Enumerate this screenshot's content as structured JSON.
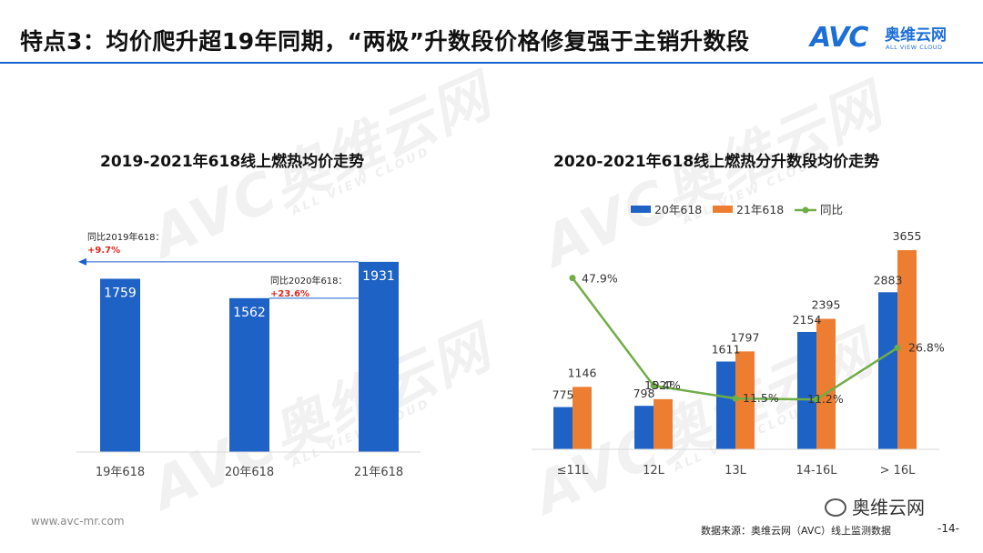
{
  "page": {
    "title": "特点3：均价爬升超19年同期，“两极”升数段价格修复强于主销升数段",
    "logo_mark": "AVC",
    "logo_cn": "奥维云网",
    "logo_en": "ALL VIEW CLOUD",
    "watermark_main": "AVC奥维云网",
    "watermark_sub": "ALL VIEW CLOUD",
    "site_url": "www.avc-mr.com",
    "source": "数据来源：奥维云网（AVC）线上监测数据",
    "page_number": "-14-",
    "wechat_label": "奥维云网"
  },
  "colors": {
    "blue": "#1f62c6",
    "orange": "#ed7d31",
    "green": "#70ad47",
    "red": "#e0261d",
    "accent": "#1a5fcf"
  },
  "chart_data": [
    {
      "type": "bar",
      "title": "2019-2021年618线上燃热均价走势",
      "categories": [
        "19年618",
        "20年618",
        "21年618"
      ],
      "values": [
        1759,
        1562,
        1931
      ],
      "annotations": [
        {
          "label": "同比2019年618：",
          "value": "+9.7%"
        },
        {
          "label": "同比2020年618：",
          "value": "+23.6%"
        }
      ]
    },
    {
      "type": "bar",
      "title": "2020-2021年618线上燃热分升数段均价走势",
      "categories": [
        "≤11L",
        "12L",
        "13L",
        "14-16L",
        "> 16L"
      ],
      "series": [
        {
          "name": "20年618",
          "type": "bar",
          "values": [
            775,
            798,
            1611,
            2154,
            2883
          ]
        },
        {
          "name": "21年618",
          "type": "bar",
          "values": [
            1146,
            921,
            1797,
            2395,
            3655
          ]
        },
        {
          "name": "同比",
          "type": "line",
          "values": [
            47.9,
            15.4,
            11.5,
            11.2,
            26.8
          ],
          "unit": "%"
        }
      ],
      "legend_position": "top"
    }
  ]
}
